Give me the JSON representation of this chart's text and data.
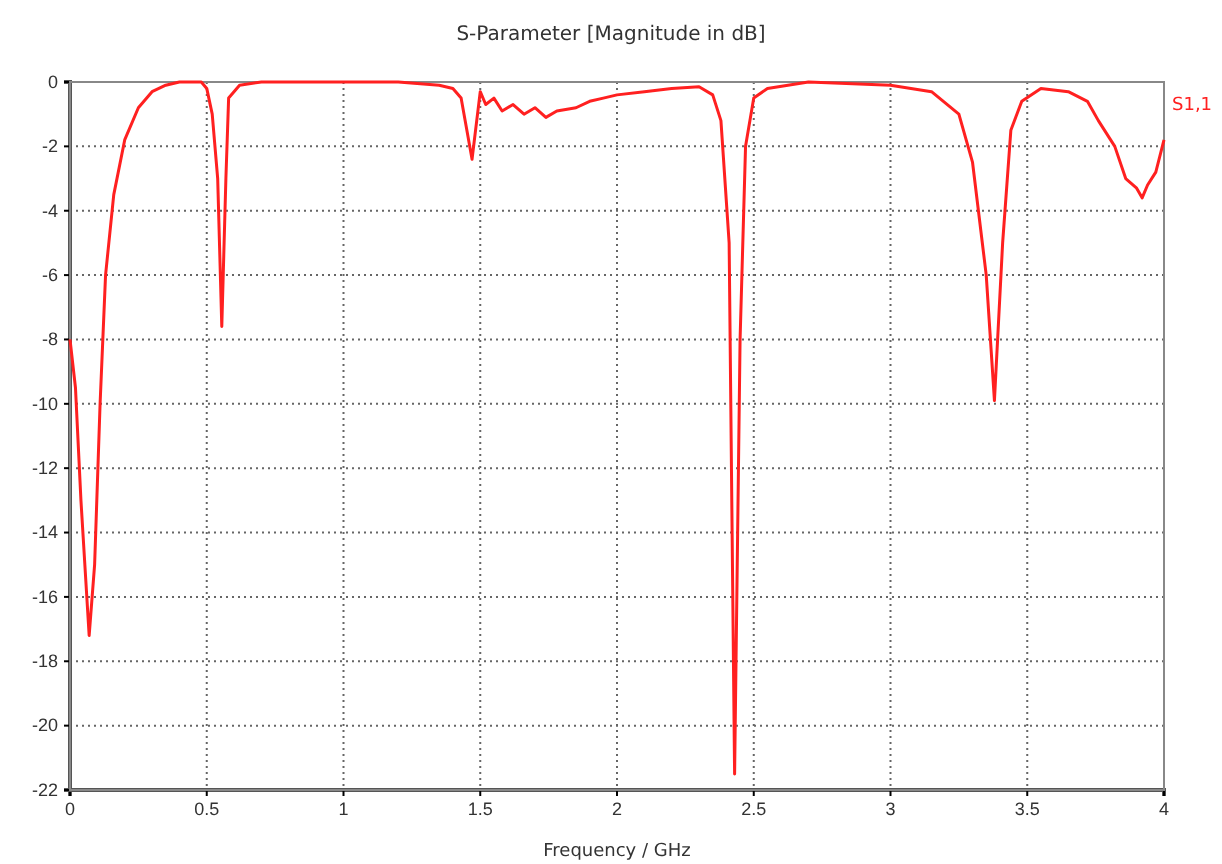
{
  "chart_data": {
    "type": "line",
    "title": "S-Parameter [Magnitude in dB]",
    "xlabel": "Frequency / GHz",
    "xlim": [
      0,
      4
    ],
    "xticks": [
      0,
      0.5,
      1,
      1.5,
      2,
      2.5,
      3,
      3.5,
      4
    ],
    "ylim": [
      -22,
      0
    ],
    "yticks": [
      -22,
      -20,
      -18,
      -16,
      -14,
      -12,
      -10,
      -8,
      -6,
      -4,
      -2,
      0
    ],
    "grid": true,
    "legend": "right",
    "marker": "none",
    "line_style": "solid",
    "series": [
      {
        "name": "S1,1",
        "color": "#ff2020",
        "x": [
          0,
          0.02,
          0.04,
          0.07,
          0.09,
          0.11,
          0.13,
          0.16,
          0.2,
          0.25,
          0.3,
          0.35,
          0.4,
          0.48,
          0.5,
          0.52,
          0.54,
          0.555,
          0.57,
          0.58,
          0.62,
          0.7,
          1.0,
          1.2,
          1.35,
          1.4,
          1.43,
          1.47,
          1.49,
          1.5,
          1.52,
          1.55,
          1.58,
          1.62,
          1.66,
          1.7,
          1.74,
          1.78,
          1.85,
          1.9,
          1.95,
          2.0,
          2.1,
          2.2,
          2.3,
          2.35,
          2.38,
          2.41,
          2.43,
          2.45,
          2.47,
          2.5,
          2.55,
          2.7,
          3.0,
          3.15,
          3.25,
          3.3,
          3.35,
          3.38,
          3.41,
          3.44,
          3.48,
          3.55,
          3.65,
          3.72,
          3.76,
          3.82,
          3.86,
          3.9,
          3.92,
          3.94,
          3.97,
          4.0
        ],
        "values": [
          -8,
          -9.5,
          -13,
          -17.2,
          -15,
          -10,
          -6,
          -3.5,
          -1.8,
          -0.8,
          -0.3,
          -0.1,
          0,
          0,
          -0.2,
          -1,
          -3,
          -7.6,
          -3,
          -0.5,
          -0.1,
          0,
          0,
          0,
          -0.1,
          -0.2,
          -0.5,
          -2.4,
          -1,
          -0.3,
          -0.7,
          -0.5,
          -0.9,
          -0.7,
          -1,
          -0.8,
          -1.1,
          -0.9,
          -0.8,
          -0.6,
          -0.5,
          -0.4,
          -0.3,
          -0.2,
          -0.15,
          -0.4,
          -1.2,
          -5,
          -21.5,
          -8,
          -2,
          -0.5,
          -0.2,
          0,
          -0.1,
          -0.3,
          -1,
          -2.5,
          -6,
          -9.9,
          -5,
          -1.5,
          -0.6,
          -0.2,
          -0.3,
          -0.6,
          -1.2,
          -2,
          -3,
          -3.3,
          -3.6,
          -3.2,
          -2.8,
          -1.8
        ]
      }
    ]
  }
}
